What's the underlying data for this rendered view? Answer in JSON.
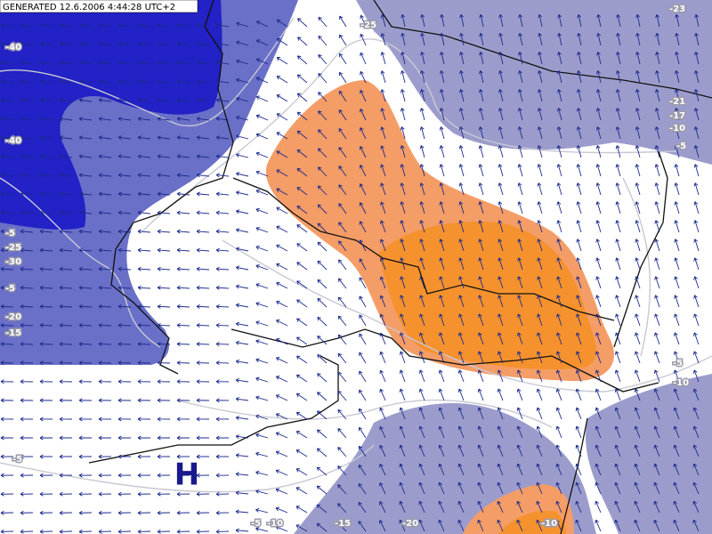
{
  "header": {
    "generated": "GENERATED 12.6.2006 4:44:28 UTC+2"
  },
  "pressure_center": "H",
  "contour_labels": [
    "-40",
    "-40",
    "-5",
    "-25",
    "-30",
    "-5",
    "-20",
    "-15",
    "-25",
    "-23",
    "-21",
    "-17",
    "-10",
    "-5",
    "-5",
    "-10",
    "-5",
    "-10",
    "-15",
    "-20",
    "-10",
    "-5"
  ]
}
